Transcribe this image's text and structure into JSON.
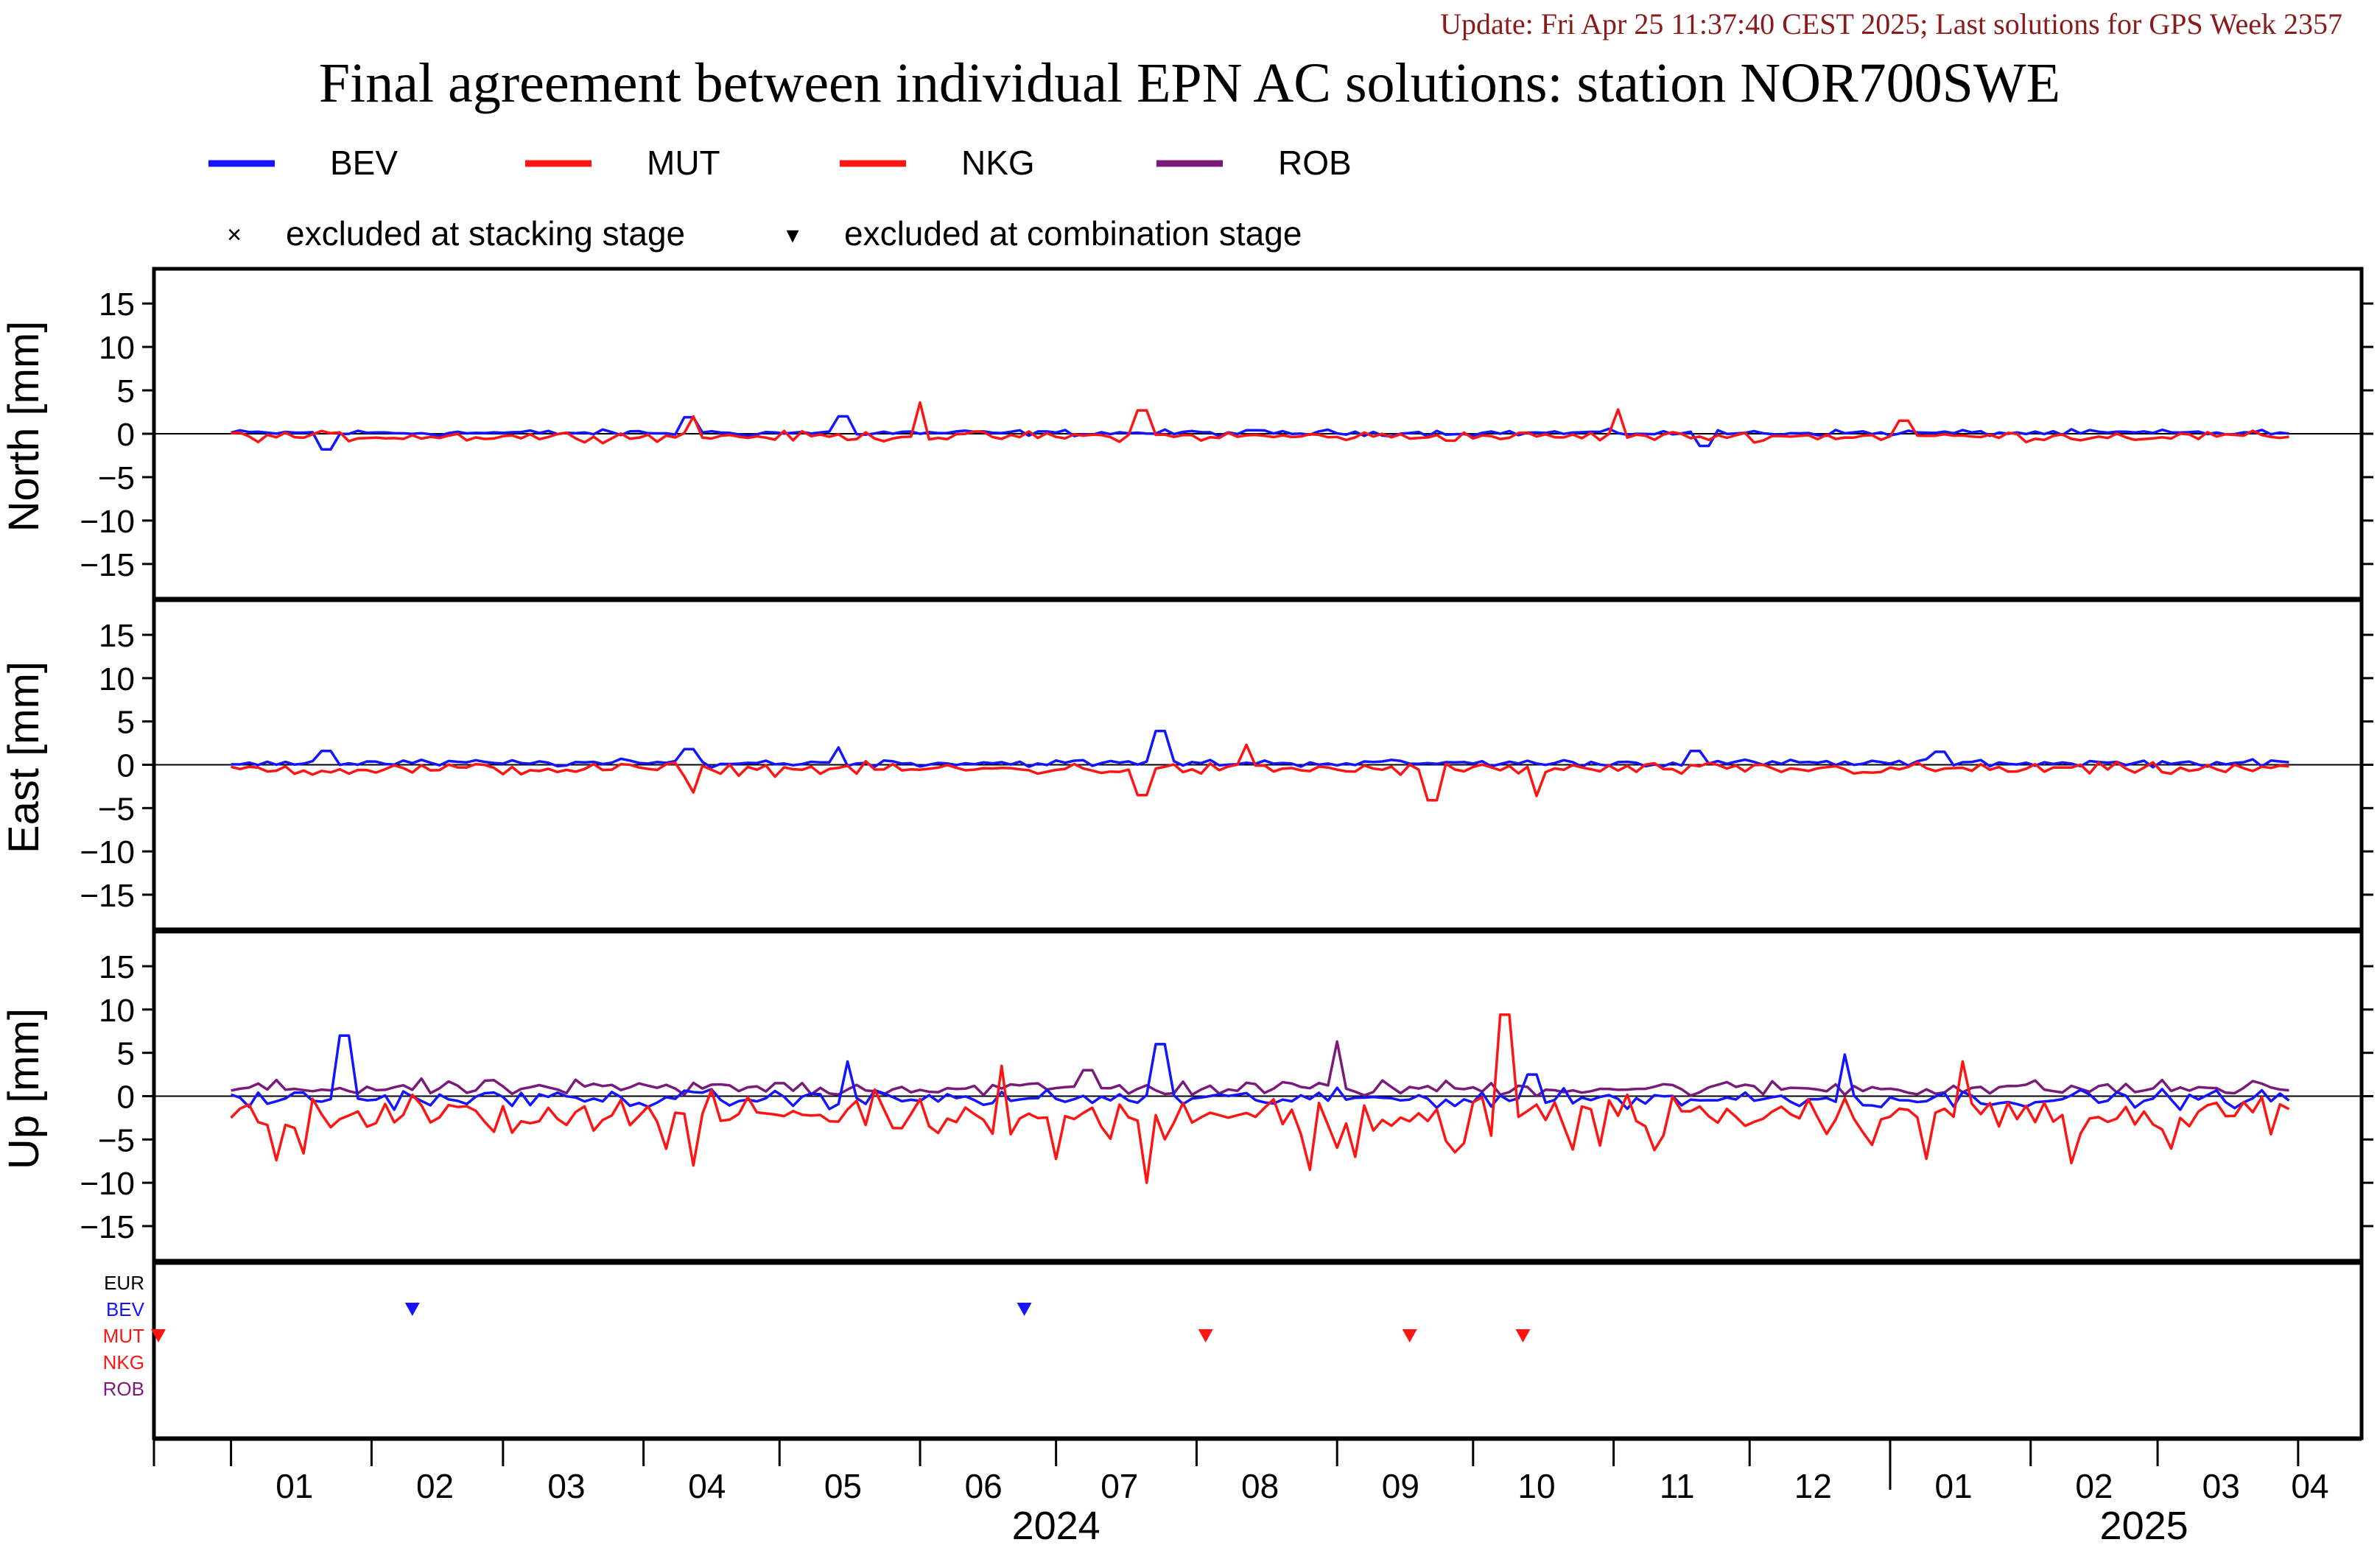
{
  "update_text": "Update: Fri Apr 25 11:37:40 CEST 2025; Last solutions for GPS Week 2357",
  "title": "Final agreement between individual EPN AC solutions: station NOR700SWE",
  "colors": {
    "BEV": "#1414ff",
    "MUT": "#ff1414",
    "NKG": "#ff1414",
    "ROB": "#7a1a7a",
    "EUR": "#000000",
    "update": "#8b1a1a",
    "axis": "#000000"
  },
  "legend": {
    "series": [
      "BEV",
      "MUT",
      "NKG",
      "ROB"
    ],
    "markers": [
      {
        "symbol": "×",
        "label": "excluded at stacking stage"
      },
      {
        "symbol": "▾",
        "label": "excluded at combination stage"
      }
    ]
  },
  "chart_data": {
    "type": "line",
    "x_unit": "month",
    "x_range": [
      "2023-12-15",
      "2025-04-15"
    ],
    "x_ticks": [
      {
        "label": "01",
        "year": 2024
      },
      {
        "label": "02",
        "year": 2024
      },
      {
        "label": "03",
        "year": 2024
      },
      {
        "label": "04",
        "year": 2024
      },
      {
        "label": "05",
        "year": 2024
      },
      {
        "label": "06",
        "year": 2024
      },
      {
        "label": "07",
        "year": 2024
      },
      {
        "label": "08",
        "year": 2024
      },
      {
        "label": "09",
        "year": 2024
      },
      {
        "label": "10",
        "year": 2024
      },
      {
        "label": "11",
        "year": 2024
      },
      {
        "label": "12",
        "year": 2024
      },
      {
        "label": "01",
        "year": 2025
      },
      {
        "label": "02",
        "year": 2025
      },
      {
        "label": "03",
        "year": 2025
      },
      {
        "label": "04",
        "year": 2025
      }
    ],
    "year_labels": [
      "2024",
      "2025"
    ],
    "panels": [
      {
        "name": "north",
        "ylabel": "North [mm]",
        "ylim": [
          -19,
          19
        ],
        "yticks": [
          15,
          10,
          5,
          0,
          -5,
          -10,
          -15
        ],
        "series": [
          {
            "name": "BEV",
            "points": [
              [
                "2024-01-01",
                0.0
              ],
              [
                "2024-01-22",
                -1.8
              ],
              [
                "2024-04-11",
                1.9
              ],
              [
                "2024-05-15",
                2.0
              ],
              [
                "2024-10-15",
                -0.6
              ],
              [
                "2024-11-21",
                -1.4
              ],
              [
                "2024-12-25",
                -1.2
              ],
              [
                "2025-03-31",
                0.2
              ]
            ]
          },
          {
            "name": "MUT",
            "points": [
              [
                "2024-01-01",
                -0.4
              ],
              [
                "2024-04-12",
                2.0
              ],
              [
                "2024-06-01",
                3.6
              ],
              [
                "2024-07-20",
                2.7
              ],
              [
                "2024-11-02",
                2.8
              ],
              [
                "2025-01-04",
                1.5
              ],
              [
                "2025-03-31",
                -0.5
              ]
            ]
          },
          {
            "name": "NKG",
            "points": []
          },
          {
            "name": "ROB",
            "points": []
          }
        ]
      },
      {
        "name": "east",
        "ylabel": "East [mm]",
        "ylim": [
          -19,
          19
        ],
        "yticks": [
          15,
          10,
          5,
          0,
          -5,
          -10,
          -15
        ],
        "series": [
          {
            "name": "BEV",
            "points": [
              [
                "2024-01-01",
                0.2
              ],
              [
                "2024-01-22",
                1.6
              ],
              [
                "2024-04-11",
                1.8
              ],
              [
                "2024-05-14",
                2.0
              ],
              [
                "2024-07-24",
                3.9
              ],
              [
                "2024-11-19",
                1.6
              ],
              [
                "2025-01-12",
                1.5
              ],
              [
                "2025-03-31",
                0.8
              ]
            ]
          },
          {
            "name": "MUT",
            "points": [
              [
                "2024-01-01",
                -0.6
              ],
              [
                "2024-04-12",
                -3.2
              ],
              [
                "2024-07-20",
                -3.5
              ],
              [
                "2024-08-12",
                2.3
              ],
              [
                "2024-09-22",
                -4.1
              ],
              [
                "2024-10-15",
                -3.6
              ],
              [
                "2025-03-31",
                -1.2
              ]
            ]
          },
          {
            "name": "NKG",
            "points": []
          },
          {
            "name": "ROB",
            "points": []
          }
        ]
      },
      {
        "name": "up",
        "ylabel": "Up [mm]",
        "ylim": [
          -19,
          19
        ],
        "yticks": [
          15,
          10,
          5,
          0,
          -5,
          -10,
          -15
        ],
        "series": [
          {
            "name": "BEV",
            "points": [
              [
                "2024-01-01",
                -1.0
              ],
              [
                "2024-01-26",
                7.0
              ],
              [
                "2024-05-16",
                4.0
              ],
              [
                "2024-07-24",
                6.0
              ],
              [
                "2024-10-14",
                2.5
              ],
              [
                "2024-12-22",
                4.8
              ],
              [
                "2025-03-31",
                0.2
              ]
            ]
          },
          {
            "name": "MUT",
            "points": [
              [
                "2024-01-01",
                -2.5
              ],
              [
                "2024-04-12",
                -8.0
              ],
              [
                "2024-06-19",
                3.5
              ],
              [
                "2024-07-21",
                -10.0
              ],
              [
                "2024-08-26",
                -8.5
              ],
              [
                "2024-10-08",
                9.4
              ],
              [
                "2025-01-09",
                -8.8
              ],
              [
                "2025-01-17",
                4.0
              ],
              [
                "2025-03-31",
                -1.5
              ]
            ]
          },
          {
            "name": "NKG",
            "points": []
          },
          {
            "name": "ROB",
            "points": [
              [
                "2024-01-01",
                0.8
              ],
              [
                "2024-05-01",
                1.5
              ],
              [
                "2024-07-08",
                3.0
              ],
              [
                "2024-09-01",
                6.3
              ],
              [
                "2025-03-31",
                0.5
              ]
            ]
          }
        ]
      }
    ],
    "exclusions": {
      "rows": [
        "EUR",
        "BEV",
        "MUT",
        "NKG",
        "ROB"
      ],
      "combination_stage": [
        {
          "series": "BEV",
          "date": "2024-02-10"
        },
        {
          "series": "BEV",
          "date": "2024-06-24"
        },
        {
          "series": "MUT",
          "date": "2023-12-15"
        },
        {
          "series": "MUT",
          "date": "2024-08-03"
        },
        {
          "series": "MUT",
          "date": "2024-09-17"
        },
        {
          "series": "MUT",
          "date": "2024-10-12"
        }
      ],
      "stacking_stage": []
    }
  }
}
